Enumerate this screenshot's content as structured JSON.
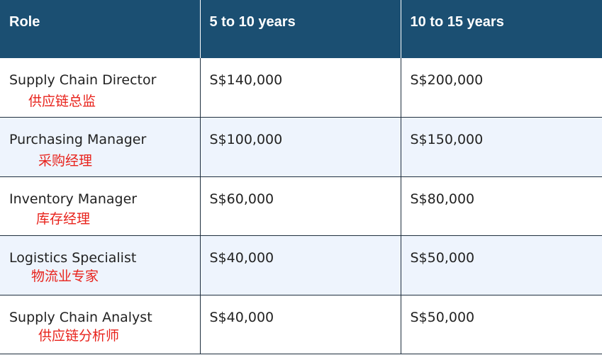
{
  "table": {
    "headers": [
      "Role",
      "5 to 10 years",
      "10 to 15 years"
    ],
    "rows": [
      {
        "role": "Supply Chain Director",
        "role_zh": "供应链总监",
        "y5_10": "S$140,000",
        "y10_15": "S$200,000"
      },
      {
        "role": "Purchasing Manager",
        "role_zh": "采购经理",
        "y5_10": "S$100,000",
        "y10_15": "S$150,000"
      },
      {
        "role": "Inventory Manager",
        "role_zh": "库存经理",
        "y5_10": "S$60,000",
        "y10_15": "S$80,000"
      },
      {
        "role": "Logistics Specialist",
        "role_zh": "物流业专家",
        "y5_10": "S$40,000",
        "y10_15": "S$50,000"
      },
      {
        "role": "Supply Chain Analyst",
        "role_zh": "供应链分析师",
        "y5_10": "S$40,000",
        "y10_15": "S$50,000"
      }
    ]
  },
  "colors": {
    "header_bg": "#1b4f72",
    "alt_row_bg": "#eef4fd",
    "annotation": "#e8221b"
  }
}
